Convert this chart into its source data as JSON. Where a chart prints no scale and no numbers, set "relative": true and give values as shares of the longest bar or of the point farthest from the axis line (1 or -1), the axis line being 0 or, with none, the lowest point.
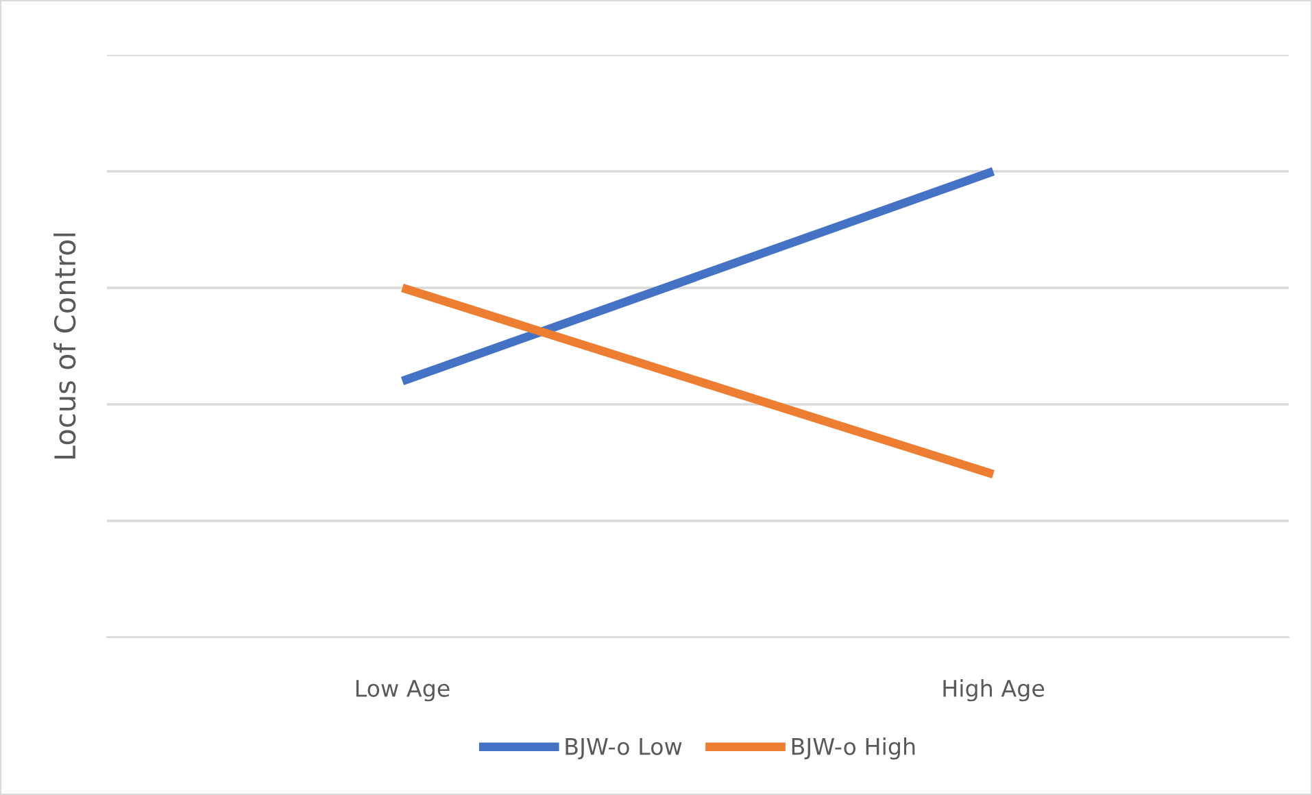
{
  "chart_data": {
    "type": "line",
    "ylabel": "Locus of Control",
    "categories": [
      "Low Age",
      "High Age"
    ],
    "relative": true,
    "grid": "y",
    "legend": "bottom",
    "marker": "none",
    "line_style": "solid",
    "series": [
      {
        "name": "BJW-o Low",
        "color": "#4472c4",
        "values": [
          0.55,
          1.0
        ]
      },
      {
        "name": "BJW-o High",
        "color": "#ed7d31",
        "values": [
          0.75,
          0.35
        ]
      }
    ]
  }
}
